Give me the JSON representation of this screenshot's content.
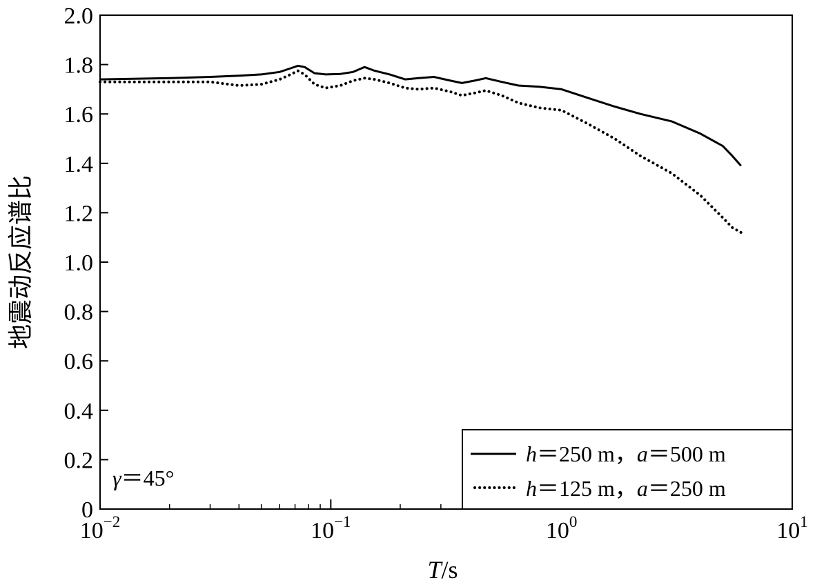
{
  "chart_data": {
    "type": "line",
    "xscale": "log",
    "xlim": [
      0.01,
      10
    ],
    "ylim": [
      0,
      2.0
    ],
    "grid": false,
    "xlabel": {
      "italic": "T",
      "rest": "/s"
    },
    "ylabel": "地震动反应谱比",
    "x_ticks": [
      {
        "value": 0.01,
        "base": "10",
        "exp": "−2"
      },
      {
        "value": 0.1,
        "base": "10",
        "exp": "−1"
      },
      {
        "value": 1,
        "base": "10",
        "exp": "0"
      },
      {
        "value": 10,
        "base": "10",
        "exp": "1"
      }
    ],
    "y_ticks": [
      0,
      0.2,
      0.4,
      0.6,
      0.8,
      1.0,
      1.2,
      1.4,
      1.6,
      1.8,
      2.0
    ],
    "y_tick_labels": [
      "0",
      "0.2",
      "0.4",
      "0.6",
      "0.8",
      "1.0",
      "1.2",
      "1.4",
      "1.6",
      "1.8",
      "2.0"
    ],
    "annotation": {
      "symbol": "γ",
      "text": "＝45°"
    },
    "legend_position": "bottom-right",
    "series": [
      {
        "label": {
          "v1": "h",
          "t1": "＝250 m，",
          "v2": "a",
          "t2": "＝500 m"
        },
        "style": "solid",
        "x": [
          0.01,
          0.02,
          0.03,
          0.04,
          0.05,
          0.06,
          0.067,
          0.072,
          0.077,
          0.085,
          0.095,
          0.11,
          0.125,
          0.14,
          0.155,
          0.18,
          0.21,
          0.24,
          0.28,
          0.33,
          0.37,
          0.42,
          0.47,
          0.55,
          0.65,
          0.8,
          1.0,
          1.3,
          1.7,
          2.2,
          3.0,
          4.0,
          5.0,
          5.5,
          6.0
        ],
        "y": [
          1.74,
          1.745,
          1.75,
          1.755,
          1.76,
          1.77,
          1.785,
          1.795,
          1.79,
          1.765,
          1.76,
          1.762,
          1.77,
          1.79,
          1.775,
          1.76,
          1.74,
          1.745,
          1.75,
          1.735,
          1.725,
          1.735,
          1.745,
          1.73,
          1.715,
          1.71,
          1.7,
          1.665,
          1.63,
          1.6,
          1.57,
          1.52,
          1.47,
          1.43,
          1.39
        ]
      },
      {
        "label": {
          "v1": "h",
          "t1": "＝125 m，",
          "v2": "a",
          "t2": "＝250 m"
        },
        "style": "dotted",
        "x": [
          0.01,
          0.02,
          0.03,
          0.04,
          0.05,
          0.06,
          0.067,
          0.072,
          0.077,
          0.085,
          0.095,
          0.11,
          0.125,
          0.14,
          0.155,
          0.18,
          0.21,
          0.24,
          0.28,
          0.33,
          0.37,
          0.42,
          0.47,
          0.55,
          0.65,
          0.8,
          1.0,
          1.3,
          1.7,
          2.2,
          3.0,
          4.0,
          5.0,
          5.5,
          6.0
        ],
        "y": [
          1.73,
          1.73,
          1.73,
          1.715,
          1.72,
          1.74,
          1.76,
          1.775,
          1.76,
          1.72,
          1.705,
          1.715,
          1.735,
          1.745,
          1.74,
          1.725,
          1.705,
          1.7,
          1.705,
          1.69,
          1.675,
          1.685,
          1.695,
          1.675,
          1.645,
          1.625,
          1.615,
          1.56,
          1.5,
          1.43,
          1.36,
          1.27,
          1.18,
          1.14,
          1.12
        ]
      }
    ]
  }
}
